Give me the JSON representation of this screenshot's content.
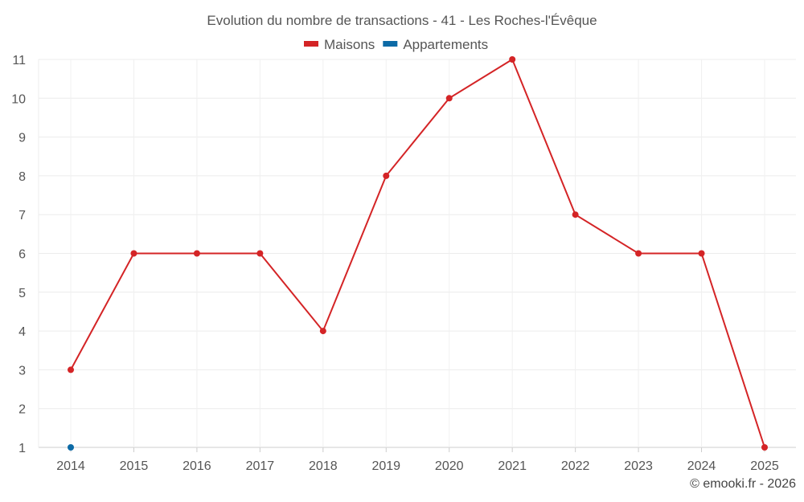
{
  "chart_data": {
    "type": "line",
    "title": "Evolution du nombre de transactions - 41 - Les Roches-l'Évêque",
    "categories": [
      "2014",
      "2015",
      "2016",
      "2017",
      "2018",
      "2019",
      "2020",
      "2021",
      "2022",
      "2023",
      "2024",
      "2025"
    ],
    "series": [
      {
        "name": "Maisons",
        "color": "#d42426",
        "values": [
          3,
          6,
          6,
          6,
          4,
          8,
          10,
          11,
          7,
          6,
          6,
          1
        ]
      },
      {
        "name": "Appartements",
        "color": "#0c6aa6",
        "values": [
          1,
          null,
          null,
          null,
          null,
          null,
          null,
          null,
          null,
          null,
          null,
          null
        ]
      }
    ],
    "yticks": [
      1,
      2,
      3,
      4,
      5,
      6,
      7,
      8,
      9,
      10,
      11
    ],
    "ylim": [
      1,
      11
    ],
    "xlabel": "",
    "ylabel": "",
    "grid": true,
    "legend": "top-center"
  },
  "credit": "© emooki.fr - 2026"
}
